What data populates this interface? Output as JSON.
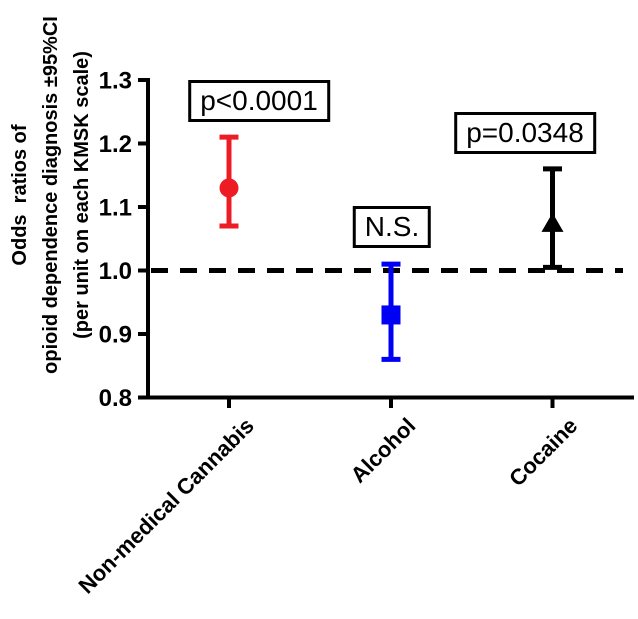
{
  "chart_data": {
    "type": "scatter",
    "subtype": "forest-plot-odds-ratios",
    "y_axis_title_lines": [
      "Odds  ratios of",
      "opioid dependence diagnosis ±95%CI",
      "(per unit on each KMSK scale)"
    ],
    "categories": [
      "Non-medical Cannabis",
      "Alcohol",
      "Cocaine"
    ],
    "y_ticks": [
      1.3,
      1.2,
      1.1,
      1.0,
      0.9,
      0.8
    ],
    "ylim": [
      0.8,
      1.3
    ],
    "reference_line": 1.0,
    "grid": false,
    "legend": "none",
    "series": [
      {
        "name": "Non-medical Cannabis",
        "marker": "circle",
        "color": "#ED1C24",
        "or": 1.13,
        "ci_low": 1.07,
        "ci_high": 1.21,
        "p_label": "p<0.0001"
      },
      {
        "name": "Alcohol",
        "marker": "square",
        "color": "#0000F5",
        "or": 0.93,
        "ci_low": 0.86,
        "ci_high": 1.01,
        "p_label": "N.S."
      },
      {
        "name": "Cocaine",
        "marker": "triangle",
        "color": "#000000",
        "or": 1.075,
        "ci_low": 1.005,
        "ci_high": 1.16,
        "p_label": "p=0.0348"
      }
    ],
    "colors": {
      "axis": "#000000",
      "background": "#FFFFFF"
    }
  }
}
